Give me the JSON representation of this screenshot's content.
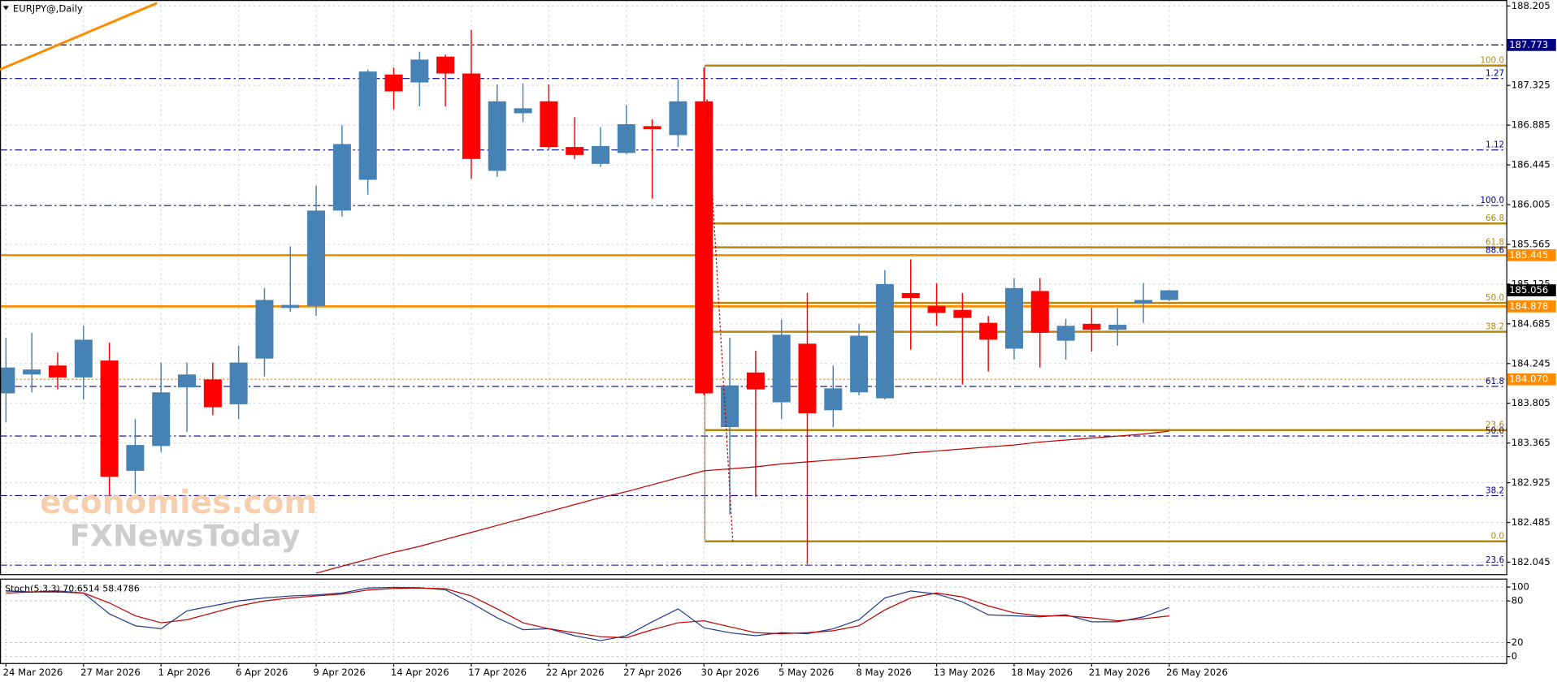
{
  "chart_data": [
    {
      "type": "candlestick",
      "title": "EURJPY@,Daily",
      "categories": [
        "24 Mar 2026",
        null,
        null,
        "27 Mar 2026",
        null,
        null,
        "1 Apr 2026",
        null,
        null,
        "6 Apr 2026",
        null,
        null,
        "9 Apr 2026",
        null,
        null,
        "14 Apr 2026",
        null,
        null,
        "17 Apr 2026",
        null,
        null,
        "22 Apr 2026",
        null,
        null,
        "27 Apr 2026",
        null,
        null,
        "30 Apr 2026",
        null,
        null,
        "5 May 2026",
        null,
        null,
        "8 May 2026",
        null,
        null,
        "13 May 2026",
        null,
        null,
        "18 May 2026",
        null,
        null,
        "21 May 2026",
        null,
        null,
        "26 May 2026"
      ],
      "open": [
        183.915,
        184.124,
        184.223,
        184.091,
        184.278,
        183.057,
        183.332,
        183.981,
        184.069,
        183.794,
        184.3,
        184.861,
        184.883,
        185.939,
        186.28,
        187.446,
        187.358,
        187.644,
        187.457,
        186.379,
        187.017,
        187.149,
        186.643,
        186.456,
        186.577,
        186.874,
        186.775,
        187.149,
        183.541,
        184.146,
        183.816,
        184.465,
        183.728,
        183.926,
        183.86,
        185.026,
        184.883,
        184.839,
        184.696,
        184.41,
        185.048,
        184.498,
        184.685,
        184.619,
        184.916,
        184.949
      ],
      "high": [
        184.531,
        184.586,
        184.366,
        184.663,
        184.476,
        183.629,
        184.256,
        184.256,
        184.256,
        184.443,
        185.081,
        185.543,
        186.214,
        186.885,
        187.501,
        187.523,
        187.699,
        187.666,
        187.941,
        187.336,
        187.347,
        187.336,
        186.973,
        186.863,
        187.105,
        186.951,
        187.391,
        187.523,
        184.531,
        184.388,
        184.729,
        185.026,
        184.223,
        184.685,
        185.279,
        185.4,
        185.136,
        185.026,
        184.773,
        185.191,
        185.191,
        184.74,
        184.861,
        184.861,
        185.136,
        185.059
      ],
      "low": [
        183.596,
        183.926,
        183.959,
        183.849,
        182.584,
        182.804,
        183.266,
        183.486,
        183.673,
        183.629,
        184.102,
        184.817,
        184.773,
        185.873,
        186.115,
        187.061,
        187.094,
        187.094,
        186.291,
        186.313,
        186.918,
        186.621,
        186.511,
        186.423,
        186.566,
        186.071,
        186.643,
        183.893,
        182.573,
        182.771,
        183.629,
        182.023,
        183.541,
        183.893,
        183.849,
        184.399,
        184.663,
        184.014,
        184.157,
        184.289,
        184.201,
        184.289,
        184.377,
        184.443,
        184.696,
        184.938
      ],
      "close": [
        184.201,
        184.179,
        184.091,
        184.509,
        182.991,
        183.343,
        183.926,
        184.124,
        183.761,
        184.256,
        184.949,
        184.894,
        185.939,
        186.676,
        187.479,
        187.259,
        187.611,
        187.457,
        186.511,
        187.149,
        187.072,
        186.643,
        186.555,
        186.654,
        186.896,
        186.841,
        187.149,
        183.915,
        184.003,
        183.959,
        184.564,
        183.695,
        183.97,
        184.553,
        185.125,
        184.971,
        184.806,
        184.751,
        184.509,
        185.081,
        184.586,
        184.663,
        184.619,
        184.674,
        184.949,
        185.056
      ],
      "up_color": "#4682b4",
      "down_color": "#ff0000",
      "moving_average": {
        "color": "#c00000",
        "values": [
          null,
          null,
          null,
          null,
          null,
          null,
          null,
          null,
          null,
          null,
          null,
          null,
          181.924,
          182.001,
          182.078,
          182.155,
          182.221,
          182.298,
          182.375,
          182.452,
          182.529,
          182.606,
          182.683,
          182.76,
          182.826,
          182.903,
          182.98,
          183.057,
          183.079,
          183.101,
          183.134,
          183.156,
          183.178,
          183.2,
          183.222,
          183.255,
          183.277,
          183.299,
          183.321,
          183.343,
          183.376,
          183.398,
          183.42,
          183.442,
          183.464,
          183.497
        ]
      },
      "ylim": [
        181.913,
        188.271
      ],
      "yticks": [
        188.205,
        187.325,
        186.885,
        186.445,
        186.005,
        185.565,
        185.125,
        184.685,
        184.245,
        183.805,
        183.365,
        182.925,
        182.485,
        182.045
      ],
      "grid": true,
      "price_lines": [
        {
          "value": 187.773,
          "label": "187.773",
          "color": "#000080",
          "style": "dashdot"
        },
        {
          "value": 185.445,
          "label": "185.445",
          "color": "#ff8c00",
          "style": "solid"
        },
        {
          "value": 184.878,
          "label": "184.878",
          "color": "#ff8c00",
          "style": "solid"
        },
        {
          "value": 184.07,
          "label": "184.070",
          "color": "#ff8c00",
          "style": "dotted"
        }
      ],
      "last_price": {
        "value": 185.056,
        "label": "185.056"
      },
      "fib_extension": {
        "color": "#00008b",
        "levels": [
          {
            "price": 187.402,
            "level": "1.27"
          },
          {
            "price": 186.61,
            "level": "1.12"
          },
          {
            "price": 185.994,
            "level": "100.0"
          },
          {
            "price": 185.444,
            "level": "88.6"
          },
          {
            "price": 183.992,
            "level": "61.8"
          },
          {
            "price": 183.442,
            "level": "50.0"
          },
          {
            "price": 182.782,
            "level": "38.2"
          },
          {
            "price": 182.012,
            "level": "23.6"
          }
        ]
      },
      "fib_retracement": {
        "color": "#b8860b",
        "levels": [
          {
            "price": 187.545,
            "level": "100.0"
          },
          {
            "price": 185.796,
            "level": "66.8"
          },
          {
            "price": 185.532,
            "level": "61.8"
          },
          {
            "price": 184.916,
            "level": "50.0"
          },
          {
            "price": 184.597,
            "level": "38.2"
          },
          {
            "price": 183.508,
            "level": "23.6"
          },
          {
            "price": 182.276,
            "level": "0.0"
          }
        ]
      },
      "watermark": [
        "economies.com",
        "FXNewsToday"
      ]
    },
    {
      "type": "line",
      "title": "Stoch(5,3,3) 70.6514 58.4786",
      "series": [
        {
          "color": "#1f3c88",
          "values": [
            94.3,
            92.9,
            94.3,
            91.4,
            61.4,
            44.3,
            40,
            65.7,
            72.9,
            80,
            84.3,
            87.1,
            88.6,
            91.4,
            98.6,
            99.5,
            99,
            96,
            77.1,
            55.7,
            38.6,
            40,
            30,
            22.9,
            30,
            50,
            68.6,
            41.4,
            34.3,
            30,
            34.3,
            32.9,
            40,
            52.9,
            84.3,
            94.3,
            90,
            78.6,
            60,
            58.6,
            57.1,
            60,
            50,
            50,
            57.1,
            70.6514
          ]
        },
        {
          "color": "#c00000",
          "values": [
            91.4,
            92.9,
            92.9,
            91.4,
            77.1,
            58.6,
            48.6,
            52.9,
            62.9,
            72.9,
            80,
            84.3,
            87.1,
            90,
            95.7,
            98,
            98.5,
            97.5,
            87.1,
            68.6,
            48.6,
            40,
            34.3,
            28.6,
            27.1,
            38.6,
            48.6,
            51.4,
            42.9,
            34.3,
            32.9,
            34.3,
            37.1,
            44.3,
            67.1,
            84.3,
            91.4,
            85.7,
            72.9,
            62.9,
            58.6,
            58.6,
            55.7,
            51.4,
            54.3,
            58.4786
          ]
        }
      ],
      "ylim": [
        -10,
        111.4
      ],
      "yticks": [
        100,
        80,
        20,
        0
      ]
    }
  ]
}
